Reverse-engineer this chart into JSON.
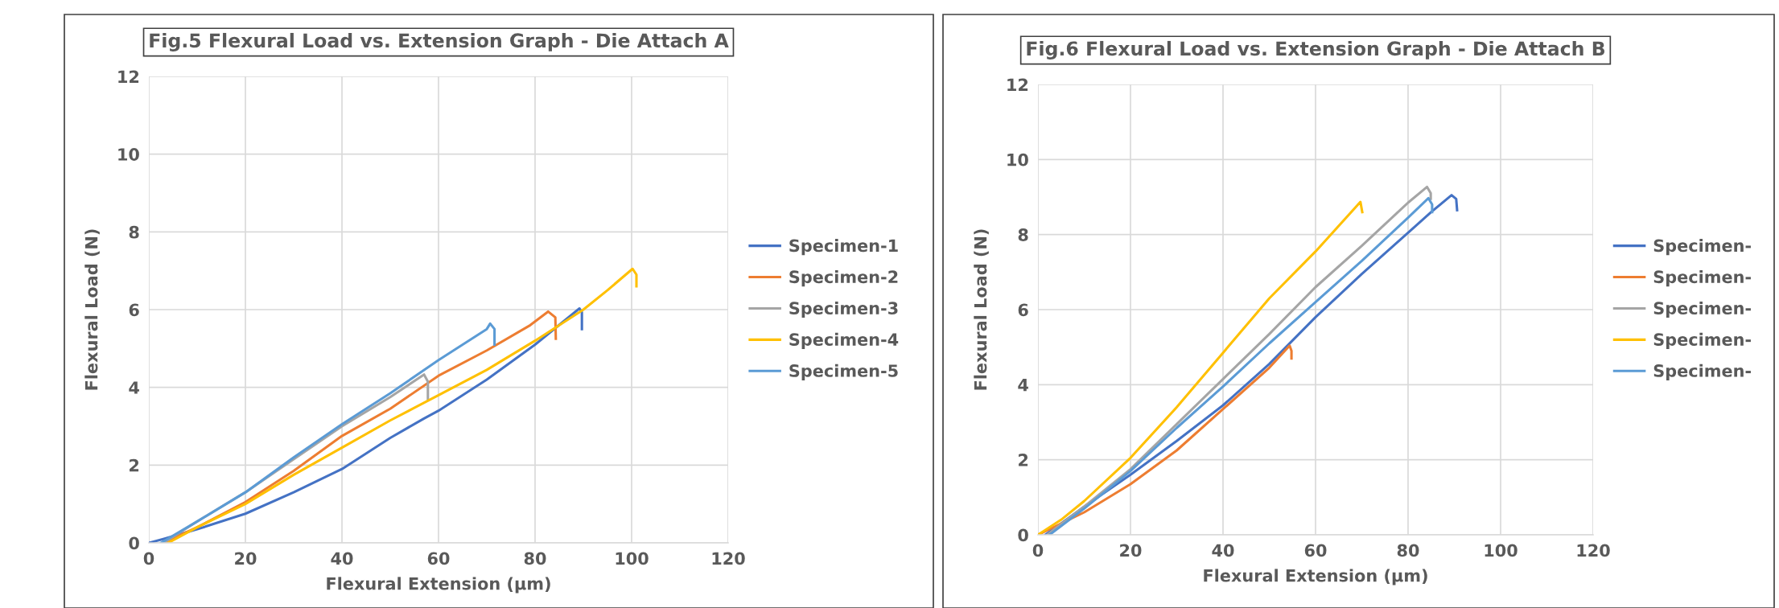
{
  "chart_data": [
    {
      "type": "line",
      "title": "Fig.5 Flexural Load vs. Extension Graph - Die Attach A",
      "xlabel": "Flexural Extension (µm)",
      "ylabel": "Flexural Load (N)",
      "xlim": [
        0,
        120
      ],
      "xticks": [
        0,
        20,
        40,
        60,
        80,
        100,
        120
      ],
      "ylim": [
        0,
        12
      ],
      "yticks": [
        0,
        2,
        4,
        6,
        8,
        10,
        12
      ],
      "grid": true,
      "legend": "right",
      "marker": "none",
      "line_style": "solid",
      "series": [
        {
          "name": "Specimen-1",
          "color": "#4472c4",
          "x": [
            0,
            3,
            10,
            20,
            30,
            35,
            40,
            50,
            57,
            60,
            70,
            80,
            89.2,
            89.7,
            89.7
          ],
          "values": [
            0,
            0.1,
            0.35,
            0.75,
            1.3,
            1.6,
            1.9,
            2.7,
            3.2,
            3.4,
            4.2,
            5.1,
            6.03,
            5.93,
            5.5
          ]
        },
        {
          "name": "Specimen-2",
          "color": "#ed7d31",
          "x": [
            3,
            10,
            20,
            30,
            40,
            50,
            60,
            70,
            79,
            82.7,
            84.2,
            84.3
          ],
          "values": [
            0,
            0.4,
            1.05,
            1.85,
            2.75,
            3.45,
            4.3,
            4.95,
            5.6,
            5.95,
            5.8,
            5.25
          ]
        },
        {
          "name": "Specimen-3",
          "color": "#a5a5a5",
          "x": [
            3,
            10,
            20,
            30,
            40,
            50,
            57,
            57.8,
            57.8
          ],
          "values": [
            0,
            0.55,
            1.3,
            2.15,
            3.0,
            3.75,
            4.33,
            4.15,
            3.7
          ]
        },
        {
          "name": "Specimen-4",
          "color": "#ffc000",
          "x": [
            4,
            10,
            20,
            30,
            40,
            50,
            60,
            70,
            80,
            90,
            95,
            100.2,
            101,
            101
          ],
          "values": [
            0,
            0.4,
            1.0,
            1.75,
            2.45,
            3.15,
            3.8,
            4.45,
            5.2,
            6.0,
            6.5,
            7.05,
            6.9,
            6.6
          ]
        },
        {
          "name": "Specimen-5",
          "color": "#5b9bd5",
          "x": [
            2.5,
            10,
            20,
            30,
            40,
            50,
            60,
            70,
            70.7,
            71.6,
            71.6
          ],
          "values": [
            0,
            0.55,
            1.3,
            2.2,
            3.05,
            3.85,
            4.7,
            5.5,
            5.64,
            5.5,
            5.1
          ]
        }
      ]
    },
    {
      "type": "line",
      "title": "Fig.6 Flexural Load vs. Extension Graph - Die Attach B",
      "xlabel": "Flexural Extension (µm)",
      "ylabel": "Flexural Load (N)",
      "xlim": [
        0,
        120
      ],
      "xticks": [
        0,
        20,
        40,
        60,
        80,
        100,
        120
      ],
      "ylim": [
        0,
        12
      ],
      "yticks": [
        0,
        2,
        4,
        6,
        8,
        10,
        12
      ],
      "grid": true,
      "legend": "right",
      "marker": "none",
      "line_style": "solid",
      "series": [
        {
          "name": "Specimen-",
          "color": "#4472c4",
          "x": [
            1.6,
            5,
            10,
            20,
            30,
            40,
            50,
            60,
            70,
            80,
            85,
            89.4,
            90.4,
            90.6
          ],
          "values": [
            0,
            0.3,
            0.75,
            1.6,
            2.5,
            3.45,
            4.55,
            5.8,
            6.95,
            8.05,
            8.6,
            9.05,
            8.95,
            8.65
          ]
        },
        {
          "name": "Specimen-",
          "color": "#ed7d31",
          "x": [
            0,
            5,
            10,
            20,
            30,
            40,
            50,
            54.4,
            54.8,
            54.8
          ],
          "values": [
            0,
            0.3,
            0.6,
            1.35,
            2.25,
            3.35,
            4.45,
            5.04,
            4.9,
            4.7
          ]
        },
        {
          "name": "Specimen-",
          "color": "#a5a5a5",
          "x": [
            2,
            10,
            20,
            30,
            40,
            50,
            60,
            70,
            80,
            84.1,
            84.9,
            84.9
          ],
          "values": [
            0,
            0.75,
            1.75,
            2.95,
            4.15,
            5.35,
            6.6,
            7.7,
            8.85,
            9.27,
            9.1,
            8.95
          ]
        },
        {
          "name": "Specimen-",
          "color": "#ffc000",
          "x": [
            0,
            5,
            10,
            20,
            30,
            40,
            50,
            60,
            69.7,
            70.1
          ],
          "values": [
            0,
            0.4,
            0.9,
            2.05,
            3.4,
            4.85,
            6.3,
            7.55,
            8.87,
            8.6
          ]
        },
        {
          "name": "Specimen-",
          "color": "#5b9bd5",
          "x": [
            2.5,
            10,
            20,
            30,
            40,
            50,
            60,
            70,
            80,
            84.4,
            85.2,
            85.2
          ],
          "values": [
            0,
            0.7,
            1.7,
            2.85,
            3.95,
            5.1,
            6.2,
            7.3,
            8.45,
            8.97,
            8.8,
            8.6
          ]
        }
      ]
    }
  ]
}
